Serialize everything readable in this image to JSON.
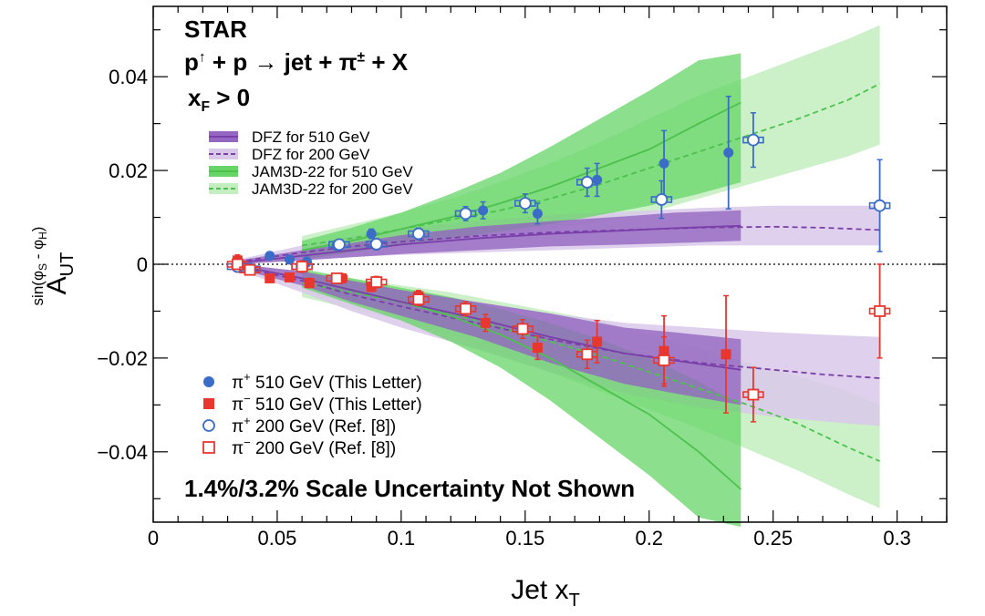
{
  "chart_data": {
    "type": "scatter",
    "xlim": [
      0,
      0.32
    ],
    "ylim": [
      -0.055,
      0.055
    ],
    "x_ticks": [
      "0",
      "0.05",
      "0.1",
      "0.15",
      "0.2",
      "0.25",
      "0.3"
    ],
    "y_ticks": [
      "0.04",
      "0.02",
      "0",
      "−0.02",
      "−0.04"
    ],
    "xlabel": {
      "main": "Jet x",
      "sub": "T"
    },
    "ylabel": {
      "main": "A",
      "sub": "UT",
      "sup": "sin(φ",
      "sup_s": "S",
      "sup_mid": " - φ",
      "sup_h": "H",
      "sup_end": ")"
    },
    "annotations": {
      "experiment": "STAR",
      "reaction": {
        "a": "p",
        "a_sup": "↑",
        "b": " + p  → jet +  π",
        "b_sup": "±",
        "c": " + X"
      },
      "cut": {
        "a": "x",
        "a_sub": "F",
        "b": " > 0"
      },
      "scale_note": "1.4%/3.2% Scale Uncertainty Not Shown"
    },
    "legend_models": [
      {
        "label": "DFZ for 510 GeV",
        "style": "band-solid",
        "color": "#7a3fa9",
        "band": "#9467c0"
      },
      {
        "label": "DFZ for 200 GeV",
        "style": "band-dashed",
        "color": "#7a3fa9",
        "band": "#d9c8ea"
      },
      {
        "label": "JAM3D-22 for 510 GeV",
        "style": "band-solid",
        "color": "#4cc24c",
        "band": "#66d466"
      },
      {
        "label": "JAM3D-22 for 200 GeV",
        "style": "band-dashed",
        "color": "#4cc24c",
        "band": "#c3efc0"
      }
    ],
    "legend_data": [
      {
        "label": "π",
        "sup": "+",
        "rest": " 510 GeV (This Letter)",
        "marker": "circle-filled",
        "color": "#3a6cc8"
      },
      {
        "label": "π",
        "sup": "−",
        "rest": " 510 GeV (This Letter)",
        "marker": "square-filled",
        "color": "#e8372e"
      },
      {
        "label": "π",
        "sup": "+",
        "rest": " 200 GeV (Ref. [8])",
        "marker": "circle-open",
        "color": "#3a6cc8"
      },
      {
        "label": "π",
        "sup": "−",
        "rest": " 200 GeV (Ref. [8])",
        "marker": "square-open",
        "color": "#e8372e"
      }
    ],
    "colors": {
      "pi_plus": "#3a6cc8",
      "pi_minus": "#e8372e",
      "dfz": "#7a3fa9",
      "jam": "#4cc24c"
    },
    "series": [
      {
        "name": "π+ 510 GeV (This Letter)",
        "marker": "circle-filled",
        "color": "#3a6cc8",
        "points": [
          {
            "x": 0.034,
            "y": 0.0,
            "err": 0.0012
          },
          {
            "x": 0.047,
            "y": 0.0018,
            "err": 0.0008
          },
          {
            "x": 0.055,
            "y": 0.001,
            "err": 0.0008
          },
          {
            "x": 0.062,
            "y": 0.0005,
            "err": 0.001
          },
          {
            "x": 0.074,
            "y": 0.004,
            "err": 0.001
          },
          {
            "x": 0.088,
            "y": 0.0065,
            "err": 0.001
          },
          {
            "x": 0.107,
            "y": 0.0065,
            "err": 0.0012
          },
          {
            "x": 0.133,
            "y": 0.0115,
            "err": 0.0018
          },
          {
            "x": 0.155,
            "y": 0.0108,
            "err": 0.0022
          },
          {
            "x": 0.179,
            "y": 0.018,
            "err": 0.0035
          },
          {
            "x": 0.206,
            "y": 0.0215,
            "err": 0.007
          },
          {
            "x": 0.232,
            "y": 0.0238,
            "err": 0.012
          }
        ]
      },
      {
        "name": "π− 510 GeV (This Letter)",
        "marker": "square-filled",
        "color": "#e8372e",
        "points": [
          {
            "x": 0.034,
            "y": 0.0008,
            "err": 0.0012
          },
          {
            "x": 0.047,
            "y": -0.003,
            "err": 0.0008
          },
          {
            "x": 0.055,
            "y": -0.0028,
            "err": 0.0008
          },
          {
            "x": 0.063,
            "y": -0.004,
            "err": 0.001
          },
          {
            "x": 0.076,
            "y": -0.003,
            "err": 0.001
          },
          {
            "x": 0.088,
            "y": -0.0048,
            "err": 0.001
          },
          {
            "x": 0.107,
            "y": -0.0068,
            "err": 0.0012
          },
          {
            "x": 0.134,
            "y": -0.0125,
            "err": 0.0018
          },
          {
            "x": 0.155,
            "y": -0.0178,
            "err": 0.0025
          },
          {
            "x": 0.179,
            "y": -0.0165,
            "err": 0.0045
          },
          {
            "x": 0.206,
            "y": -0.0185,
            "err": 0.0075
          },
          {
            "x": 0.231,
            "y": -0.0192,
            "err": 0.0125
          }
        ]
      },
      {
        "name": "π+ 200 GeV (Ref. [8])",
        "marker": "circle-open",
        "color": "#3a6cc8",
        "points": [
          {
            "x": 0.034,
            "y": -0.0005,
            "err": 0.001
          },
          {
            "x": 0.039,
            "y": -0.001,
            "err": 0.001
          },
          {
            "x": 0.06,
            "y": -0.0005,
            "err": 0.0012
          },
          {
            "x": 0.075,
            "y": 0.0042,
            "err": 0.001
          },
          {
            "x": 0.09,
            "y": 0.0043,
            "err": 0.0012
          },
          {
            "x": 0.107,
            "y": 0.0065,
            "err": 0.0012
          },
          {
            "x": 0.126,
            "y": 0.0108,
            "err": 0.0015
          },
          {
            "x": 0.15,
            "y": 0.013,
            "err": 0.002
          },
          {
            "x": 0.175,
            "y": 0.0175,
            "err": 0.003
          },
          {
            "x": 0.205,
            "y": 0.0138,
            "err": 0.004
          },
          {
            "x": 0.242,
            "y": 0.0265,
            "err": 0.0058
          },
          {
            "x": 0.293,
            "y": 0.0125,
            "err": 0.0098
          }
        ]
      },
      {
        "name": "π− 200 GeV (Ref. [8])",
        "marker": "square-open",
        "color": "#e8372e",
        "points": [
          {
            "x": 0.034,
            "y": 0.0,
            "err": 0.001
          },
          {
            "x": 0.039,
            "y": -0.0012,
            "err": 0.001
          },
          {
            "x": 0.06,
            "y": -0.0005,
            "err": 0.0012
          },
          {
            "x": 0.074,
            "y": -0.003,
            "err": 0.001
          },
          {
            "x": 0.09,
            "y": -0.0038,
            "err": 0.0012
          },
          {
            "x": 0.107,
            "y": -0.0075,
            "err": 0.0013
          },
          {
            "x": 0.126,
            "y": -0.0095,
            "err": 0.0015
          },
          {
            "x": 0.149,
            "y": -0.0138,
            "err": 0.002
          },
          {
            "x": 0.175,
            "y": -0.0192,
            "err": 0.003
          },
          {
            "x": 0.206,
            "y": -0.0205,
            "err": 0.005
          },
          {
            "x": 0.242,
            "y": -0.0278,
            "err": 0.0058
          },
          {
            "x": 0.293,
            "y": -0.01,
            "err": 0.01
          }
        ]
      }
    ],
    "curves": [
      {
        "name": "JAM3D-22 200 GeV π+",
        "color": "#4cc24c",
        "band_color": "#c3efc0",
        "band_opacity": 0.85,
        "dashed": true,
        "points": [
          [
            0.06,
            0.004,
            0.001,
            0.006
          ],
          [
            0.08,
            0.0055,
            0.003,
            0.0085
          ],
          [
            0.1,
            0.0075,
            0.0045,
            0.011
          ],
          [
            0.12,
            0.0095,
            0.0055,
            0.014
          ],
          [
            0.14,
            0.0115,
            0.0065,
            0.0175
          ],
          [
            0.16,
            0.014,
            0.0075,
            0.0215
          ],
          [
            0.18,
            0.017,
            0.009,
            0.026
          ],
          [
            0.2,
            0.0205,
            0.011,
            0.031
          ],
          [
            0.22,
            0.024,
            0.014,
            0.036
          ],
          [
            0.24,
            0.0275,
            0.017,
            0.04
          ],
          [
            0.26,
            0.031,
            0.02,
            0.044
          ],
          [
            0.28,
            0.035,
            0.023,
            0.048
          ],
          [
            0.293,
            0.0385,
            0.0255,
            0.051
          ]
        ]
      },
      {
        "name": "JAM3D-22 200 GeV π−",
        "color": "#4cc24c",
        "band_color": "#c3efc0",
        "band_opacity": 0.85,
        "dashed": true,
        "points": [
          [
            0.06,
            -0.004,
            -0.007,
            -0.0015
          ],
          [
            0.08,
            -0.006,
            -0.0095,
            -0.003
          ],
          [
            0.1,
            -0.008,
            -0.012,
            -0.0045
          ],
          [
            0.12,
            -0.0105,
            -0.015,
            -0.006
          ],
          [
            0.14,
            -0.0135,
            -0.019,
            -0.008
          ],
          [
            0.16,
            -0.0165,
            -0.023,
            -0.01
          ],
          [
            0.18,
            -0.0195,
            -0.027,
            -0.012
          ],
          [
            0.2,
            -0.023,
            -0.031,
            -0.015
          ],
          [
            0.22,
            -0.0265,
            -0.035,
            -0.018
          ],
          [
            0.24,
            -0.03,
            -0.0395,
            -0.021
          ],
          [
            0.26,
            -0.034,
            -0.044,
            -0.024
          ],
          [
            0.28,
            -0.039,
            -0.049,
            -0.027
          ],
          [
            0.293,
            -0.042,
            -0.052,
            -0.03
          ]
        ]
      },
      {
        "name": "DFZ 200 GeV π+",
        "color": "#7a3fa9",
        "band_color": "#d9c8ea",
        "band_opacity": 0.85,
        "dashed": true,
        "points": [
          [
            0.034,
            0.0005,
            0.0,
            0.001
          ],
          [
            0.06,
            0.0025,
            0.001,
            0.004
          ],
          [
            0.08,
            0.0038,
            0.0015,
            0.006
          ],
          [
            0.1,
            0.0048,
            0.002,
            0.0075
          ],
          [
            0.13,
            0.006,
            0.0025,
            0.0092
          ],
          [
            0.16,
            0.0068,
            0.003,
            0.0105
          ],
          [
            0.19,
            0.0073,
            0.0035,
            0.0112
          ],
          [
            0.22,
            0.0078,
            0.004,
            0.012
          ],
          [
            0.25,
            0.008,
            0.004,
            0.0125
          ],
          [
            0.27,
            0.0078,
            0.004,
            0.0125
          ],
          [
            0.293,
            0.0073,
            0.004,
            0.0125
          ]
        ]
      },
      {
        "name": "DFZ 200 GeV π−",
        "color": "#7a3fa9",
        "band_color": "#d9c8ea",
        "band_opacity": 0.85,
        "dashed": true,
        "points": [
          [
            0.034,
            -0.0005,
            -0.0012,
            0.0
          ],
          [
            0.06,
            -0.0035,
            -0.006,
            -0.0015
          ],
          [
            0.08,
            -0.0065,
            -0.01,
            -0.0035
          ],
          [
            0.1,
            -0.009,
            -0.0135,
            -0.0055
          ],
          [
            0.13,
            -0.0125,
            -0.018,
            -0.008
          ],
          [
            0.16,
            -0.016,
            -0.023,
            -0.0105
          ],
          [
            0.19,
            -0.019,
            -0.0275,
            -0.0125
          ],
          [
            0.22,
            -0.021,
            -0.0305,
            -0.0135
          ],
          [
            0.25,
            -0.0225,
            -0.0325,
            -0.0145
          ],
          [
            0.27,
            -0.0235,
            -0.0335,
            -0.015
          ],
          [
            0.293,
            -0.0243,
            -0.0345,
            -0.0155
          ]
        ]
      },
      {
        "name": "JAM3D-22 510 GeV π+",
        "color": "#4cc24c",
        "band_color": "#66d466",
        "band_opacity": 0.75,
        "dashed": false,
        "points": [
          [
            0.06,
            0.003,
            0.001,
            0.005
          ],
          [
            0.08,
            0.005,
            0.0025,
            0.0078
          ],
          [
            0.1,
            0.0075,
            0.004,
            0.011
          ],
          [
            0.12,
            0.01,
            0.0055,
            0.015
          ],
          [
            0.14,
            0.013,
            0.007,
            0.0195
          ],
          [
            0.16,
            0.0165,
            0.0085,
            0.025
          ],
          [
            0.18,
            0.0205,
            0.0105,
            0.031
          ],
          [
            0.2,
            0.0245,
            0.0125,
            0.037
          ],
          [
            0.22,
            0.03,
            0.015,
            0.0435
          ],
          [
            0.237,
            0.0345,
            0.0175,
            0.045
          ]
        ]
      },
      {
        "name": "JAM3D-22 510 GeV π−",
        "color": "#4cc24c",
        "band_color": "#66d466",
        "band_opacity": 0.75,
        "dashed": false,
        "points": [
          [
            0.06,
            -0.003,
            -0.005,
            -0.001
          ],
          [
            0.08,
            -0.0055,
            -0.0085,
            -0.003
          ],
          [
            0.1,
            -0.008,
            -0.012,
            -0.005
          ],
          [
            0.12,
            -0.011,
            -0.0165,
            -0.007
          ],
          [
            0.14,
            -0.015,
            -0.022,
            -0.0095
          ],
          [
            0.16,
            -0.02,
            -0.029,
            -0.0125
          ],
          [
            0.18,
            -0.026,
            -0.037,
            -0.016
          ],
          [
            0.2,
            -0.032,
            -0.045,
            -0.02
          ],
          [
            0.22,
            -0.04,
            -0.054,
            -0.025
          ],
          [
            0.237,
            -0.048,
            -0.056,
            -0.03
          ]
        ]
      },
      {
        "name": "DFZ 510 GeV π+",
        "color": "#7a3fa9",
        "band_color": "#9467c0",
        "band_opacity": 0.8,
        "dashed": false,
        "points": [
          [
            0.034,
            0.0003,
            0.0,
            0.0008
          ],
          [
            0.06,
            0.0018,
            0.0008,
            0.003
          ],
          [
            0.08,
            0.003,
            0.0015,
            0.0045
          ],
          [
            0.1,
            0.0042,
            0.0022,
            0.0062
          ],
          [
            0.13,
            0.0055,
            0.003,
            0.008
          ],
          [
            0.16,
            0.0065,
            0.0038,
            0.0092
          ],
          [
            0.19,
            0.0072,
            0.0042,
            0.0102
          ],
          [
            0.21,
            0.0077,
            0.0045,
            0.011
          ],
          [
            0.237,
            0.0082,
            0.005,
            0.0115
          ]
        ]
      },
      {
        "name": "DFZ 510 GeV π−",
        "color": "#7a3fa9",
        "band_color": "#9467c0",
        "band_opacity": 0.8,
        "dashed": false,
        "points": [
          [
            0.034,
            -0.0003,
            -0.001,
            0.0
          ],
          [
            0.06,
            -0.003,
            -0.0045,
            -0.0015
          ],
          [
            0.08,
            -0.0055,
            -0.008,
            -0.0035
          ],
          [
            0.1,
            -0.008,
            -0.011,
            -0.0055
          ],
          [
            0.13,
            -0.0115,
            -0.0155,
            -0.008
          ],
          [
            0.16,
            -0.0155,
            -0.021,
            -0.0105
          ],
          [
            0.19,
            -0.019,
            -0.0255,
            -0.0135
          ],
          [
            0.21,
            -0.0205,
            -0.0275,
            -0.0145
          ],
          [
            0.237,
            -0.0225,
            -0.03,
            -0.016
          ]
        ]
      }
    ]
  }
}
